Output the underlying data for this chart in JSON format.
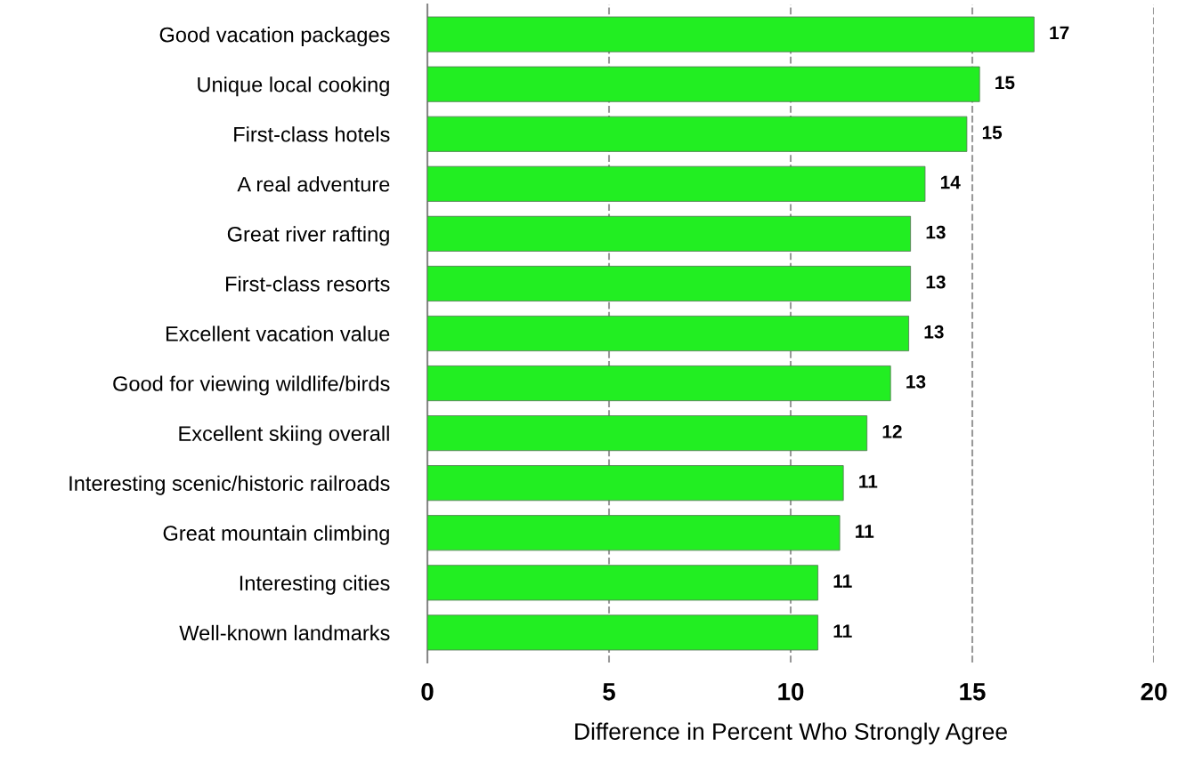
{
  "chart_data": {
    "type": "bar",
    "orientation": "horizontal",
    "xlabel": "Difference in Percent Who Strongly Agree",
    "categories": [
      "Good vacation packages",
      "Unique local cooking",
      "First-class hotels",
      "A real adventure",
      "Great river rafting",
      "First-class resorts",
      "Excellent vacation value",
      "Good for viewing wildlife/birds",
      "Excellent skiing overall",
      "Interesting scenic/historic railroads",
      "Great mountain climbing",
      "Interesting cities",
      "Well-known landmarks"
    ],
    "values": [
      16.7,
      15.2,
      14.85,
      13.7,
      13.3,
      13.3,
      13.25,
      12.75,
      12.1,
      11.45,
      11.35,
      10.75,
      10.75
    ],
    "value_labels": [
      "17",
      "15",
      "15",
      "14",
      "13",
      "13",
      "13",
      "13",
      "12",
      "11",
      "11",
      "11",
      "11"
    ],
    "color": "#22ee22",
    "xlim": [
      0,
      20
    ],
    "xticks": [
      0,
      5,
      10,
      15,
      20
    ],
    "grid": "x",
    "line_style": "dashed"
  }
}
